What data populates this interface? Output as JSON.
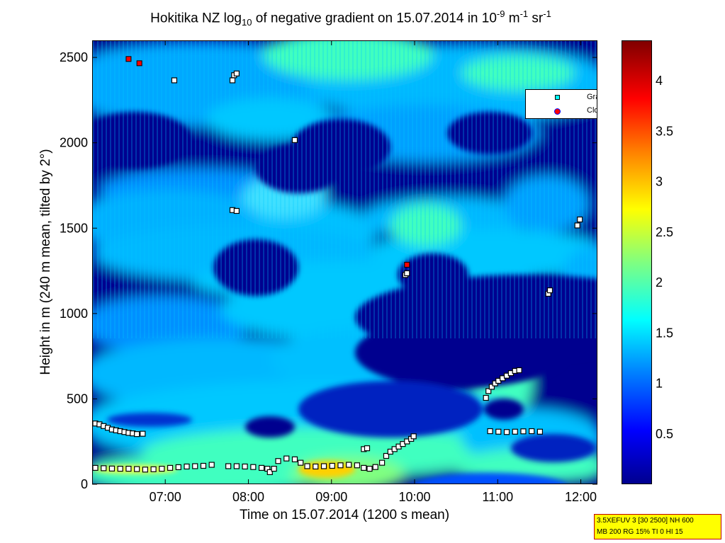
{
  "title": {
    "prefix": "Hokitika NZ log",
    "sub": "10",
    "middle": " of negative gradient on 15.07.2014 in 10",
    "sup1": "-9",
    "unit_m": " m",
    "sup2": "-1",
    "unit_sr": " sr",
    "sup3": "-1"
  },
  "chart_data": {
    "type": "heatmap",
    "xlabel": "Time on 15.07.2014 (1200 s mean)",
    "ylabel": "Height in m (240 m mean, tilted by 2°)",
    "x_ticks": [
      "07:00",
      "08:00",
      "09:00",
      "10:00",
      "11:00",
      "12:00"
    ],
    "x_tick_hours": [
      7,
      8,
      9,
      10,
      11,
      12
    ],
    "xlim_hours": [
      6.12,
      12.2
    ],
    "y_ticks": [
      "0",
      "500",
      "1000",
      "1500",
      "2000",
      "2500"
    ],
    "y_tick_values": [
      0,
      500,
      1000,
      1500,
      2000,
      2500
    ],
    "ylim": [
      0,
      2600
    ],
    "colorbar": {
      "ticks": [
        "0.5",
        "1",
        "1.5",
        "2",
        "2.5",
        "3",
        "3.5",
        "4"
      ],
      "tick_values": [
        0.5,
        1,
        1.5,
        2,
        2.5,
        3,
        3.5,
        4
      ],
      "range": [
        0,
        4.4
      ],
      "colormap": [
        "#00008f",
        "#0000ff",
        "#0080ff",
        "#00ffff",
        "#80ff80",
        "#ffff00",
        "#ff8000",
        "#ff0000",
        "#800000"
      ]
    },
    "series": [
      {
        "name": "Gradient local minimum",
        "marker": "square",
        "color": "#00ffff",
        "points": [
          [
            6.15,
            360
          ],
          [
            6.2,
            355
          ],
          [
            6.25,
            345
          ],
          [
            6.3,
            335
          ],
          [
            6.35,
            325
          ],
          [
            6.4,
            320
          ],
          [
            6.45,
            315
          ],
          [
            6.5,
            310
          ],
          [
            6.55,
            305
          ],
          [
            6.6,
            302
          ],
          [
            6.65,
            298
          ],
          [
            6.72,
            300
          ],
          [
            6.15,
            100
          ],
          [
            6.25,
            98
          ],
          [
            6.35,
            96
          ],
          [
            6.45,
            95
          ],
          [
            6.55,
            95
          ],
          [
            6.65,
            93
          ],
          [
            6.75,
            90
          ],
          [
            6.85,
            92
          ],
          [
            6.95,
            95
          ],
          [
            7.05,
            100
          ],
          [
            7.15,
            104
          ],
          [
            7.25,
            108
          ],
          [
            7.35,
            110
          ],
          [
            7.45,
            112
          ],
          [
            7.55,
            118
          ],
          [
            7.75,
            110
          ],
          [
            7.85,
            110
          ],
          [
            7.95,
            108
          ],
          [
            8.05,
            105
          ],
          [
            8.15,
            100
          ],
          [
            8.22,
            95
          ],
          [
            8.25,
            75
          ],
          [
            8.3,
            95
          ],
          [
            8.35,
            140
          ],
          [
            8.45,
            155
          ],
          [
            8.55,
            150
          ],
          [
            8.62,
            130
          ],
          [
            8.7,
            110
          ],
          [
            8.8,
            108
          ],
          [
            8.9,
            110
          ],
          [
            9.0,
            112
          ],
          [
            9.1,
            115
          ],
          [
            9.2,
            118
          ],
          [
            9.3,
            115
          ],
          [
            9.38,
            100
          ],
          [
            9.45,
            95
          ],
          [
            9.52,
            105
          ],
          [
            9.6,
            130
          ],
          [
            9.65,
            170
          ],
          [
            9.7,
            195
          ],
          [
            9.75,
            210
          ],
          [
            9.8,
            225
          ],
          [
            9.85,
            240
          ],
          [
            9.9,
            255
          ],
          [
            9.95,
            270
          ],
          [
            9.98,
            285
          ],
          [
            9.38,
            210
          ],
          [
            9.42,
            215
          ],
          [
            10.85,
            510
          ],
          [
            10.88,
            550
          ],
          [
            10.92,
            575
          ],
          [
            10.96,
            595
          ],
          [
            11.0,
            610
          ],
          [
            11.05,
            625
          ],
          [
            11.1,
            640
          ],
          [
            11.15,
            655
          ],
          [
            11.2,
            668
          ],
          [
            11.25,
            672
          ],
          [
            10.9,
            315
          ],
          [
            11.0,
            312
          ],
          [
            11.1,
            310
          ],
          [
            11.2,
            312
          ],
          [
            11.3,
            314
          ],
          [
            11.4,
            315
          ],
          [
            11.5,
            312
          ],
          [
            7.1,
            2370
          ],
          [
            7.8,
            2370
          ],
          [
            7.82,
            2400
          ],
          [
            7.85,
            2410
          ],
          [
            8.55,
            2020
          ],
          [
            7.8,
            1610
          ],
          [
            7.85,
            1605
          ],
          [
            9.88,
            1230
          ],
          [
            9.9,
            1240
          ],
          [
            11.6,
            1120
          ],
          [
            11.62,
            1140
          ],
          [
            11.95,
            1520
          ],
          [
            11.98,
            1555
          ]
        ]
      },
      {
        "name": "Cloud",
        "marker": "square-filled",
        "color": "#ff0000",
        "points": [
          [
            6.55,
            2495
          ],
          [
            6.68,
            2470
          ],
          [
            9.9,
            1290
          ]
        ]
      }
    ]
  },
  "legend": {
    "items": [
      "Gradient local minimum",
      "Cloud"
    ]
  },
  "info_box": {
    "line1": "3.5XEFUV 3 [30 2500] NH 600",
    "line2": "MB 200 RG 15% TI 0 HI 15"
  }
}
